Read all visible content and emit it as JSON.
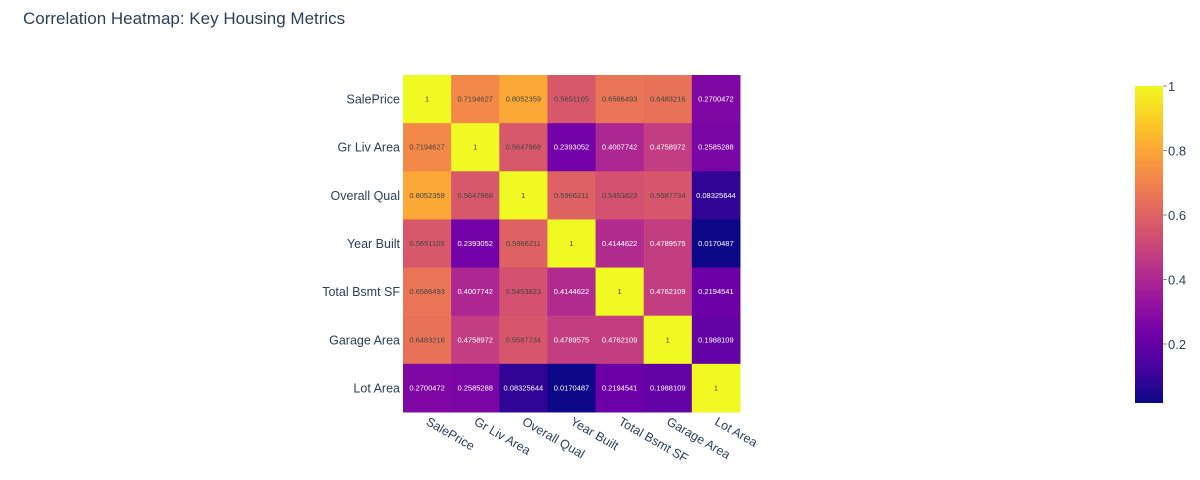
{
  "page": {
    "title": "Correlation Heatmap: Key Housing Metrics"
  },
  "chart_data": {
    "type": "heatmap",
    "title": "Correlation Heatmap: Key Housing Metrics",
    "x_labels": [
      "SalePrice",
      "Gr Liv Area",
      "Overall Qual",
      "Year Built",
      "Total Bsmt SF",
      "Garage Area",
      "Lot Area"
    ],
    "y_labels": [
      "SalePrice",
      "Gr Liv Area",
      "Overall Qual",
      "Year Built",
      "Total Bsmt SF",
      "Garage Area",
      "Lot Area"
    ],
    "z": [
      [
        "1",
        "0.7194627",
        "0.8052359",
        "0.5651105",
        "0.6586493",
        "0.6483216",
        "0.2700472"
      ],
      [
        "0.7194627",
        "1",
        "0.5647968",
        "0.2393052",
        "0.4007742",
        "0.4758972",
        "0.2585288"
      ],
      [
        "0.8052359",
        "0.5647968",
        "1",
        "0.5966211",
        "0.5453823",
        "0.5587734",
        "0.08325644"
      ],
      [
        "0.5651105",
        "0.2393052",
        "0.5966211",
        "1",
        "0.4144622",
        "0.4789575",
        "0.0170487"
      ],
      [
        "0.6586493",
        "0.4007742",
        "0.5453823",
        "0.4144622",
        "1",
        "0.4762109",
        "0.2194541"
      ],
      [
        "0.6483216",
        "0.4758972",
        "0.5587734",
        "0.4789575",
        "0.4762109",
        "1",
        "0.1988109"
      ],
      [
        "0.2700472",
        "0.2585288",
        "0.08325644",
        "0.0170487",
        "0.2194541",
        "0.1988109",
        "1"
      ]
    ],
    "colorscale": "plasma",
    "colorscale_stops": [
      "#0d0887",
      "#46039f",
      "#7201a8",
      "#9c179e",
      "#bd3786",
      "#d8576b",
      "#ed7953",
      "#fb9f3a",
      "#fdca26",
      "#f0f921"
    ],
    "zmin": 0.0170487,
    "zmax": 1,
    "colorbar_ticks": [
      "0.2",
      "0.4",
      "0.6",
      "0.8",
      "1"
    ],
    "label_color_dark": "#444444",
    "label_color_light": "#ffffff",
    "axis_text_color": "#2a3f5f"
  }
}
